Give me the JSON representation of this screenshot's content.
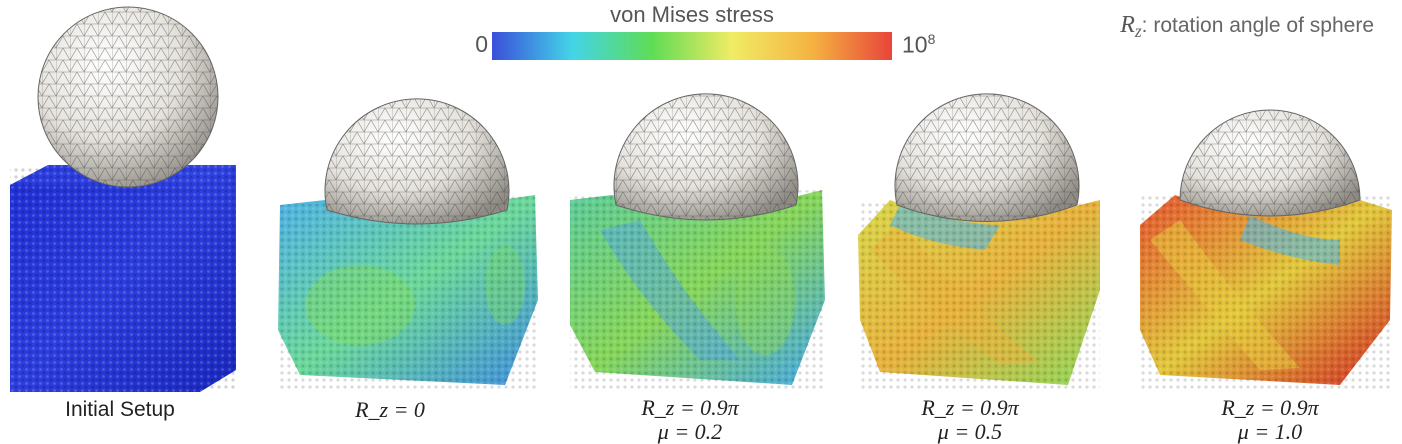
{
  "colorbar": {
    "title": "von Mises stress",
    "min_label": "0",
    "max_base": "10",
    "max_exp": "8",
    "colors": [
      "#3b4fd9",
      "#43d4e8",
      "#5fdc55",
      "#f0ec64",
      "#f5b342",
      "#e8453a"
    ]
  },
  "legend": {
    "symbol": "R",
    "subscript": "z",
    "text": ": rotation angle of sphere"
  },
  "panels": [
    {
      "caption_line1": "Initial Setup",
      "caption_line2": "",
      "cube_colors": [
        "#1f2fd6",
        "#2d3ee0",
        "#1a28c0"
      ]
    },
    {
      "caption_line1": "R_z = 0",
      "caption_line2": "",
      "cube_colors": [
        "#4fb2e8",
        "#6bd89a",
        "#3f8fe0"
      ]
    },
    {
      "caption_line1": "R_z = 0.9π",
      "caption_line2": "μ = 0.2",
      "cube_colors": [
        "#5ccc9a",
        "#86d65a",
        "#45a8e6"
      ]
    },
    {
      "caption_line1": "R_z = 0.9π",
      "caption_line2": "μ = 0.5",
      "cube_colors": [
        "#d8d84a",
        "#e8b23c",
        "#8ed85a"
      ]
    },
    {
      "caption_line1": "R_z = 0.9π",
      "caption_line2": "μ = 1.0",
      "cube_colors": [
        "#e6552f",
        "#e2c83c",
        "#d42e25"
      ]
    }
  ]
}
